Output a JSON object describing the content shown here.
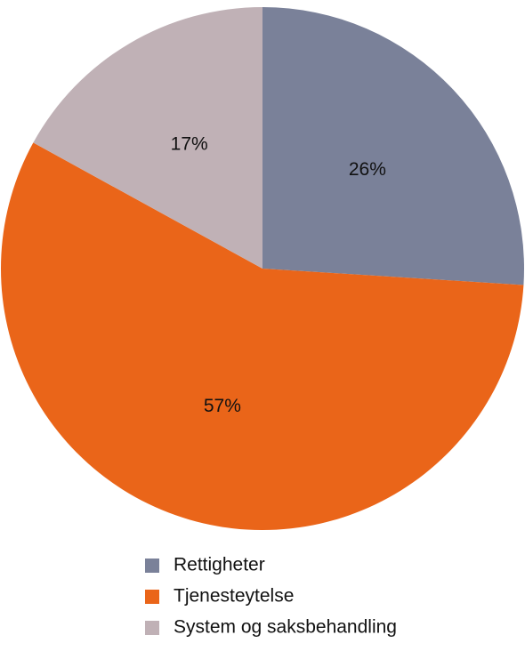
{
  "chart_data": {
    "type": "pie",
    "categories": [
      "Rettigheter",
      "Tjenesteytelse",
      "System og saksbehandling"
    ],
    "values": [
      26,
      57,
      17
    ],
    "value_labels": [
      "26%",
      "57%",
      "17%"
    ],
    "colors": [
      "#7a8199",
      "#ea6519",
      "#c0b1b6"
    ]
  }
}
